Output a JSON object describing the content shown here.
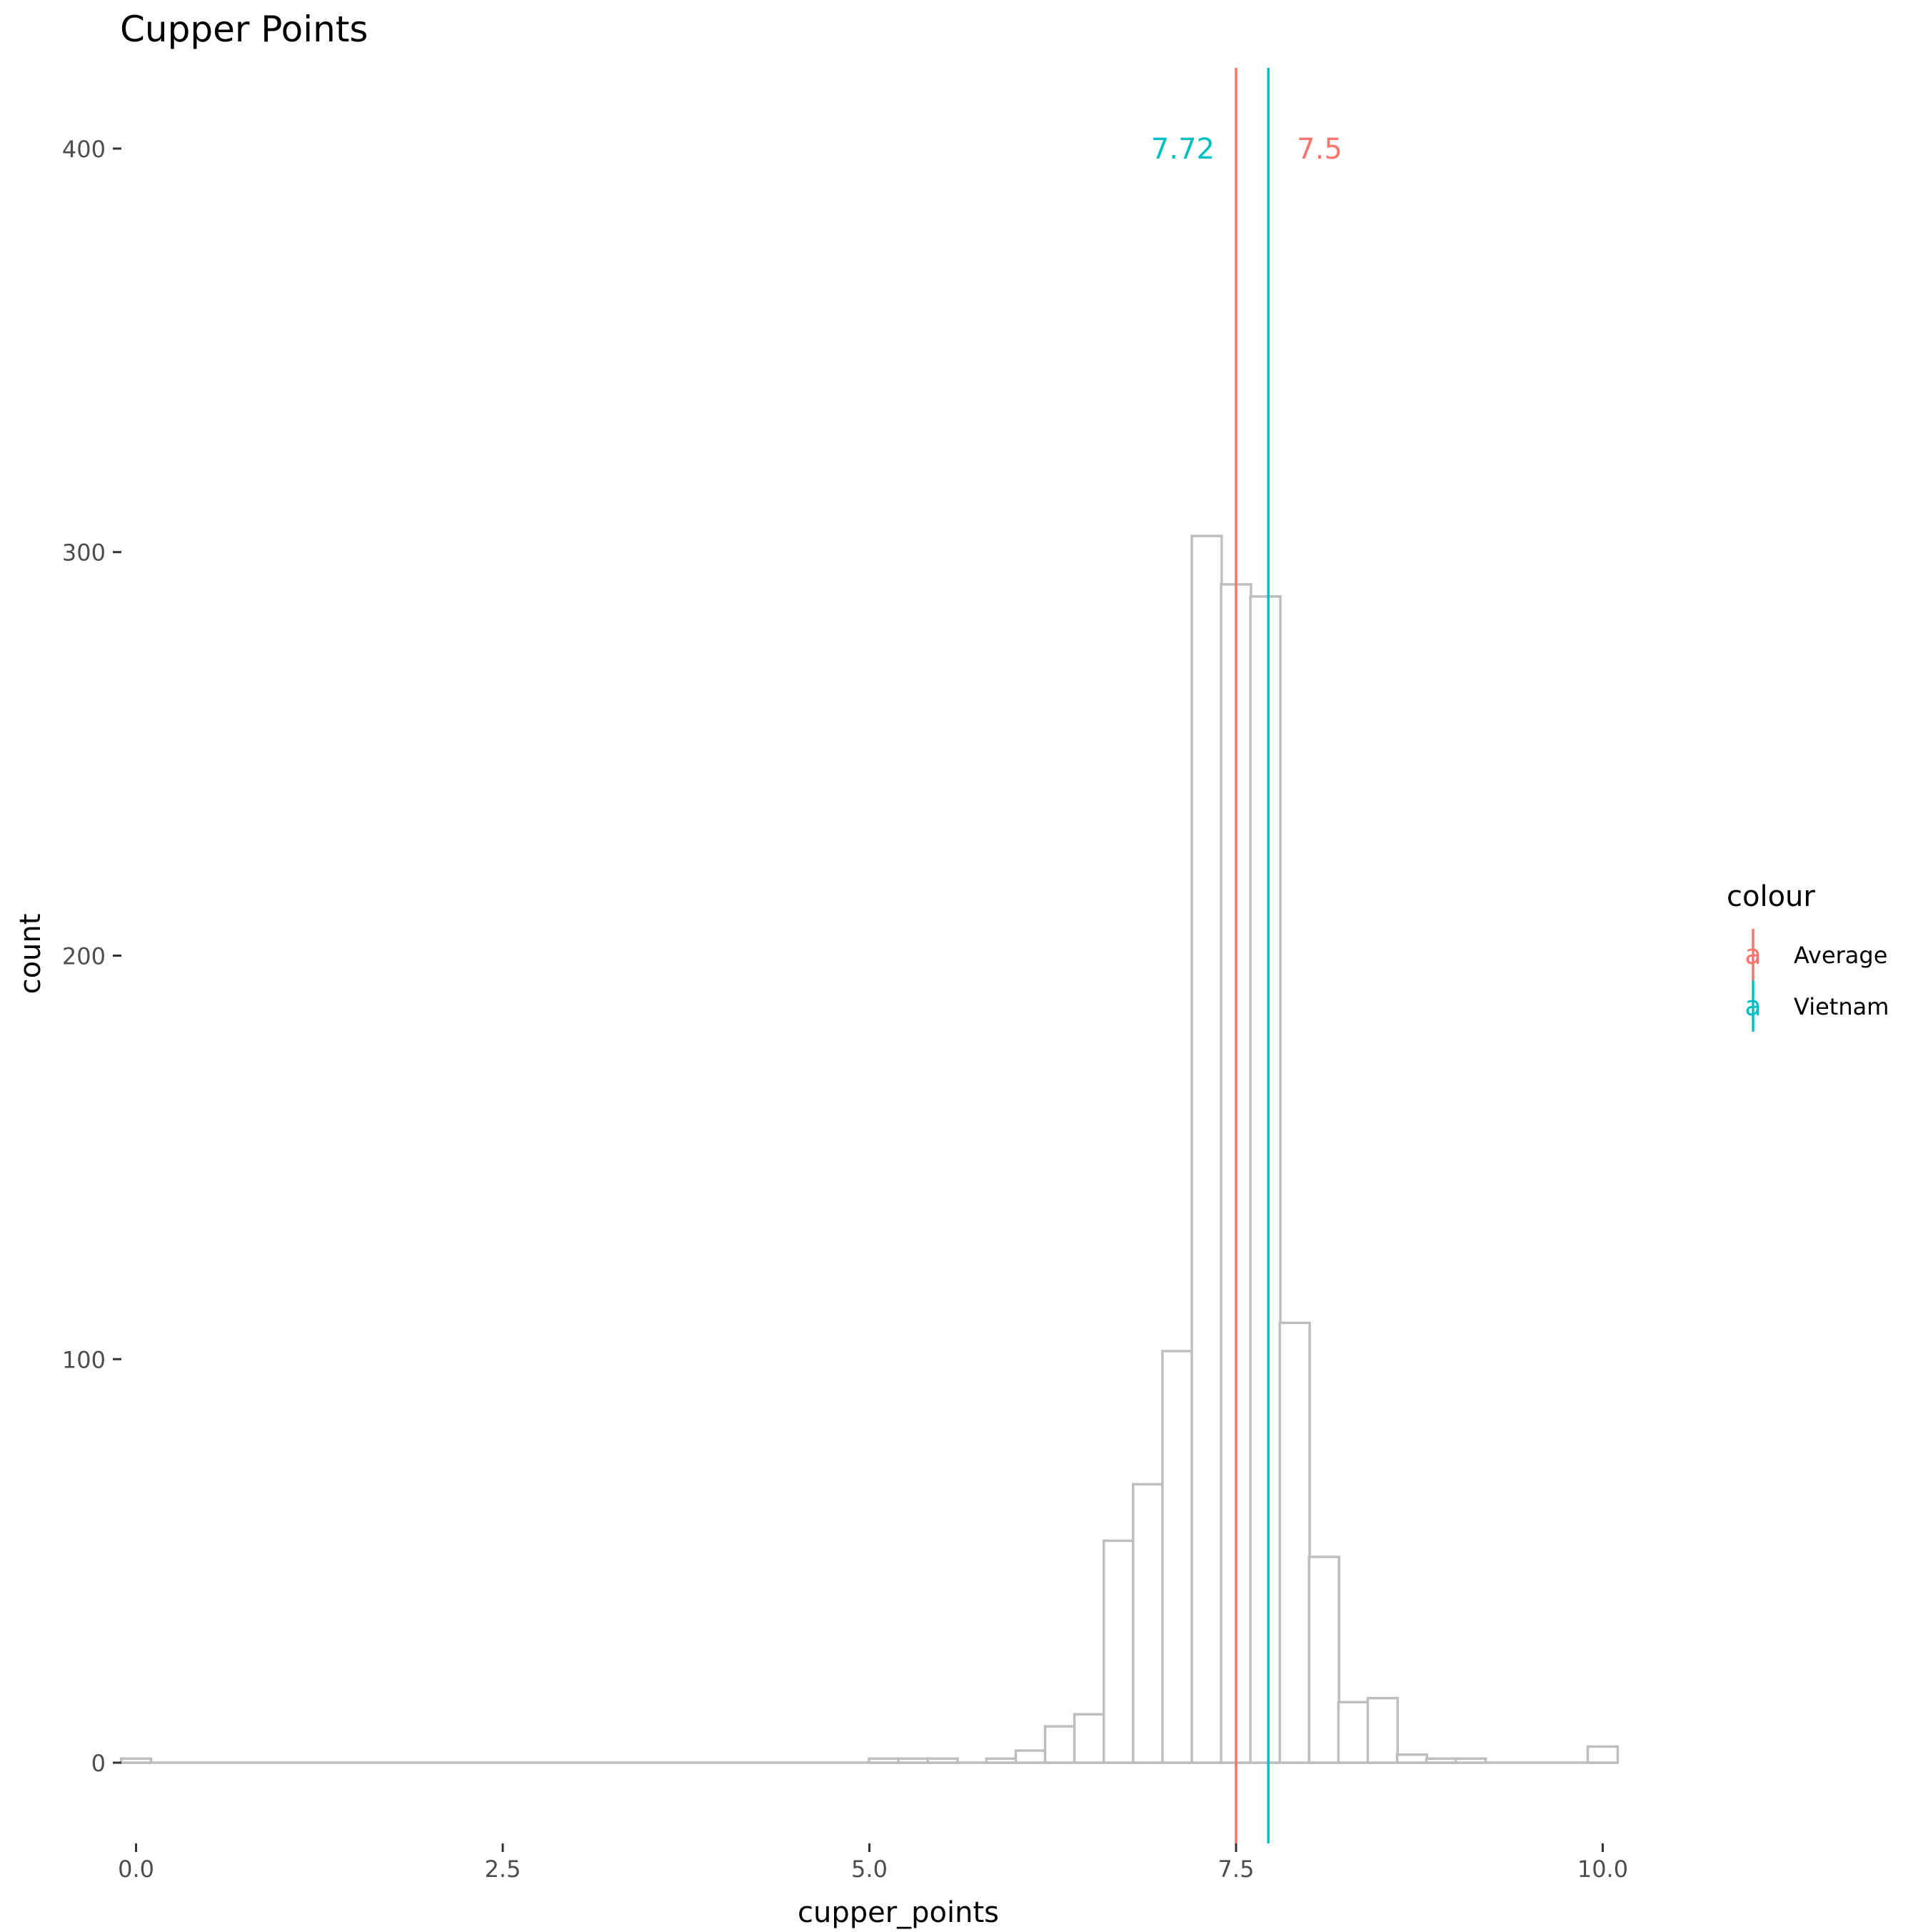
{
  "chart_data": {
    "type": "bar",
    "title": "Cupper Points",
    "xlabel": "cupper_points",
    "ylabel": "count",
    "xlim": [
      -0.1,
      10.1
    ],
    "ylim": [
      -20,
      420
    ],
    "x_ticks": [
      0.0,
      2.5,
      5.0,
      7.5,
      10.0
    ],
    "x_tick_labels": [
      "0.0",
      "2.5",
      "5.0",
      "7.5",
      "10.0"
    ],
    "y_ticks": [
      0,
      100,
      200,
      300,
      400
    ],
    "y_tick_labels": [
      "0",
      "100",
      "200",
      "300",
      "400"
    ],
    "bin_width": 0.204,
    "bins": [
      {
        "x": 0.0,
        "count": 1
      },
      {
        "x": 5.1,
        "count": 1
      },
      {
        "x": 5.3,
        "count": 1
      },
      {
        "x": 5.5,
        "count": 1
      },
      {
        "x": 5.9,
        "count": 1
      },
      {
        "x": 6.1,
        "count": 3
      },
      {
        "x": 6.3,
        "count": 9
      },
      {
        "x": 6.5,
        "count": 12
      },
      {
        "x": 6.7,
        "count": 55
      },
      {
        "x": 6.9,
        "count": 69
      },
      {
        "x": 7.1,
        "count": 102
      },
      {
        "x": 7.3,
        "count": 304
      },
      {
        "x": 7.5,
        "count": 292
      },
      {
        "x": 7.7,
        "count": 289
      },
      {
        "x": 7.9,
        "count": 109
      },
      {
        "x": 8.1,
        "count": 51
      },
      {
        "x": 8.3,
        "count": 15
      },
      {
        "x": 8.5,
        "count": 16
      },
      {
        "x": 8.7,
        "count": 2
      },
      {
        "x": 8.9,
        "count": 1
      },
      {
        "x": 9.1,
        "count": 1
      },
      {
        "x": 10.0,
        "count": 4
      }
    ],
    "bar_outline_color": "#bebebe",
    "vlines": [
      {
        "name": "Average",
        "x": 7.5,
        "color": "#F8766D",
        "label": "7.5"
      },
      {
        "name": "Vietnam",
        "x": 7.72,
        "color": "#00BFC4",
        "label": "7.72"
      }
    ],
    "legend": {
      "title": "colour",
      "position": "right",
      "key_glyph": "a",
      "items": [
        {
          "label": "Average",
          "color": "#F8766D"
        },
        {
          "label": "Vietnam",
          "color": "#00BFC4"
        }
      ]
    },
    "grid": false
  }
}
